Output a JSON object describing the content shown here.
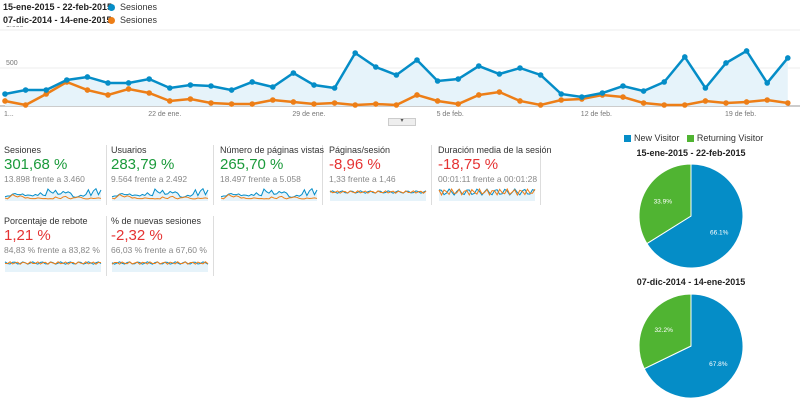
{
  "legend": [
    {
      "range": "15-ene-2015 - 22-feb-2015:",
      "metric": "Sesiones",
      "color": "#058dc7"
    },
    {
      "range": "07-dic-2014 - 14-ene-2015:",
      "metric": "Sesiones",
      "color": "#ed7e17"
    }
  ],
  "chart_data": [
    {
      "type": "line",
      "ylim": [
        0,
        1000
      ],
      "yticks": [
        "1.000",
        "500"
      ],
      "xticks": [
        {
          "label": "1...",
          "day": 0
        },
        {
          "label": "22 de ene.",
          "day": 7
        },
        {
          "label": "29 de ene.",
          "day": 14
        },
        {
          "label": "5 de feb.",
          "day": 21
        },
        {
          "label": "12 de feb.",
          "day": 28
        },
        {
          "label": "19 de feb.",
          "day": 35
        }
      ],
      "series": [
        {
          "name": "Sesiones",
          "period": "15-ene-2015 - 22-feb-2015",
          "color": "#058dc7",
          "values": [
            158,
            210,
            210,
            342,
            382,
            303,
            303,
            355,
            237,
            276,
            263,
            210,
            316,
            250,
            434,
            276,
            237,
            697,
            513,
            408,
            605,
            329,
            355,
            526,
            421,
            500,
            408,
            158,
            118,
            171,
            263,
            197,
            316,
            645,
            237,
            566,
            724,
            303,
            632
          ]
        },
        {
          "name": "Sesiones",
          "period": "07-dic-2014 - 14-ene-2015",
          "color": "#ed7e17",
          "values": [
            66,
            13,
            158,
            316,
            210,
            145,
            224,
            171,
            66,
            92,
            39,
            26,
            26,
            79,
            53,
            26,
            39,
            13,
            26,
            13,
            145,
            66,
            26,
            145,
            184,
            66,
            13,
            79,
            92,
            145,
            118,
            39,
            13,
            13,
            66,
            39,
            53,
            79,
            39
          ]
        }
      ]
    },
    {
      "type": "pie",
      "title": "15-ene-2015 - 22-feb-2015",
      "legend": [
        "New Visitor",
        "Returning Visitor"
      ],
      "colors": [
        "#058dc7",
        "#50b432"
      ],
      "values": [
        66.1,
        33.9
      ],
      "labels": [
        "66.1%",
        "33.9%"
      ]
    },
    {
      "type": "pie",
      "title": "07-dic-2014 - 14-ene-2015",
      "legend": [
        "New Visitor",
        "Returning Visitor"
      ],
      "colors": [
        "#058dc7",
        "#50b432"
      ],
      "values": [
        67.8,
        32.2
      ],
      "labels": [
        "67.8%",
        "32.2%"
      ]
    }
  ],
  "metrics": [
    {
      "title": "Sesiones",
      "value": "301,68 %",
      "trend": "pos",
      "compare": "13.898 frente a 3.460"
    },
    {
      "title": "Usuarios",
      "value": "283,79 %",
      "trend": "pos",
      "compare": "9.564 frente a 2.492"
    },
    {
      "title": "Número de páginas vistas",
      "value": "265,70 %",
      "trend": "pos",
      "compare": "18.497 frente a 5.058"
    },
    {
      "title": "Páginas/sesión",
      "value": "-8,96 %",
      "trend": "neg",
      "compare": "1,33 frente a 1,46"
    },
    {
      "title": "Duración media de la sesión",
      "value": "-18,75 %",
      "trend": "neg",
      "compare": "00:01:11 frente a 00:01:28"
    },
    {
      "title": "Porcentaje de rebote",
      "value": "1,21 %",
      "trend": "neg",
      "compare": "84,83 % frente a 83,82 %"
    },
    {
      "title": "% de nuevas sesiones",
      "value": "-2,32 %",
      "trend": "neg",
      "compare": "66,03 % frente a 67,60 %"
    }
  ],
  "pie_legend": {
    "new": "New Visitor",
    "returning": "Returning Visitor"
  }
}
